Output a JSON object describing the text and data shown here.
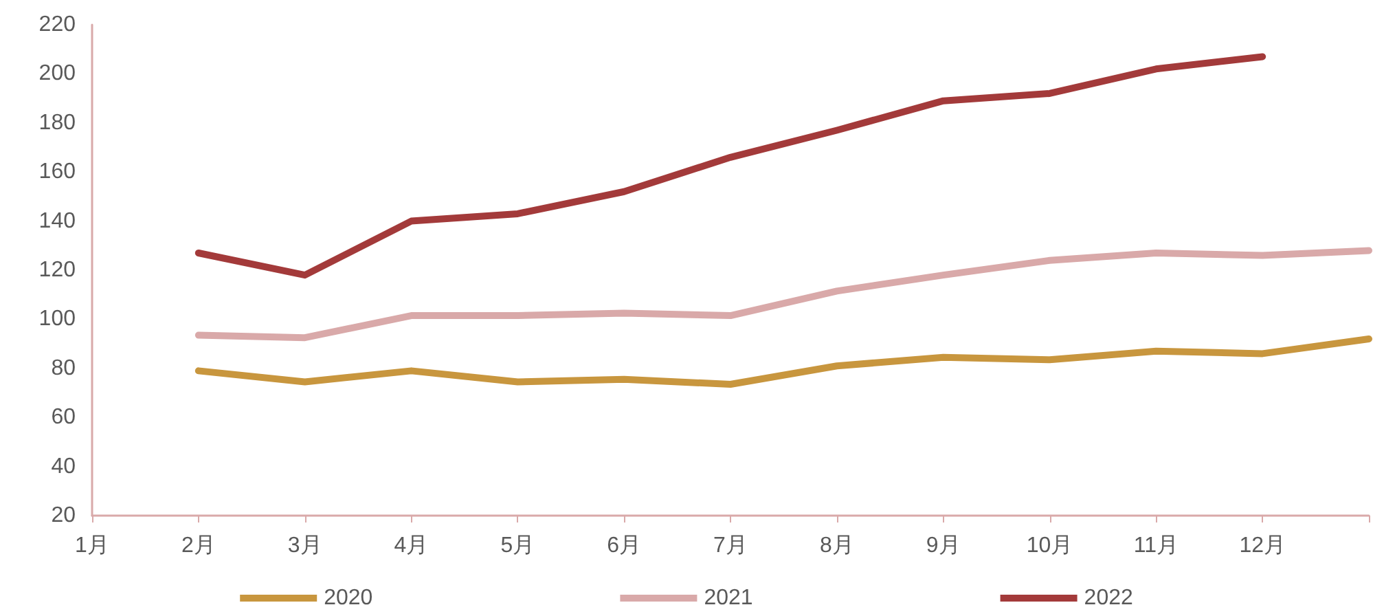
{
  "chart_data": {
    "type": "line",
    "categories": [
      "1月",
      "2月",
      "3月",
      "4月",
      "5月",
      "6月",
      "7月",
      "8月",
      "9月",
      "10月",
      "11月",
      "12月",
      null
    ],
    "series": [
      {
        "name": "2020",
        "color": "#c8963e",
        "values": [
          null,
          79,
          74.5,
          79,
          74.5,
          75.5,
          73.5,
          81,
          84.5,
          83.5,
          87,
          86,
          92
        ]
      },
      {
        "name": "2021",
        "color": "#d9a9a9",
        "values": [
          null,
          93.5,
          92.5,
          101.5,
          101.5,
          102.5,
          101.5,
          111.5,
          118,
          124,
          127,
          126,
          128
        ]
      },
      {
        "name": "2022",
        "color": "#a33a3a",
        "values": [
          null,
          127,
          118,
          140,
          143,
          152,
          166,
          177,
          189,
          192,
          202,
          207,
          null
        ]
      }
    ],
    "ylim": [
      20,
      220
    ],
    "yticks": [
      20,
      40,
      60,
      80,
      100,
      120,
      140,
      160,
      180,
      200,
      220
    ],
    "grid": false,
    "legend": "bottom",
    "marker": "none",
    "line_style": "solid"
  }
}
